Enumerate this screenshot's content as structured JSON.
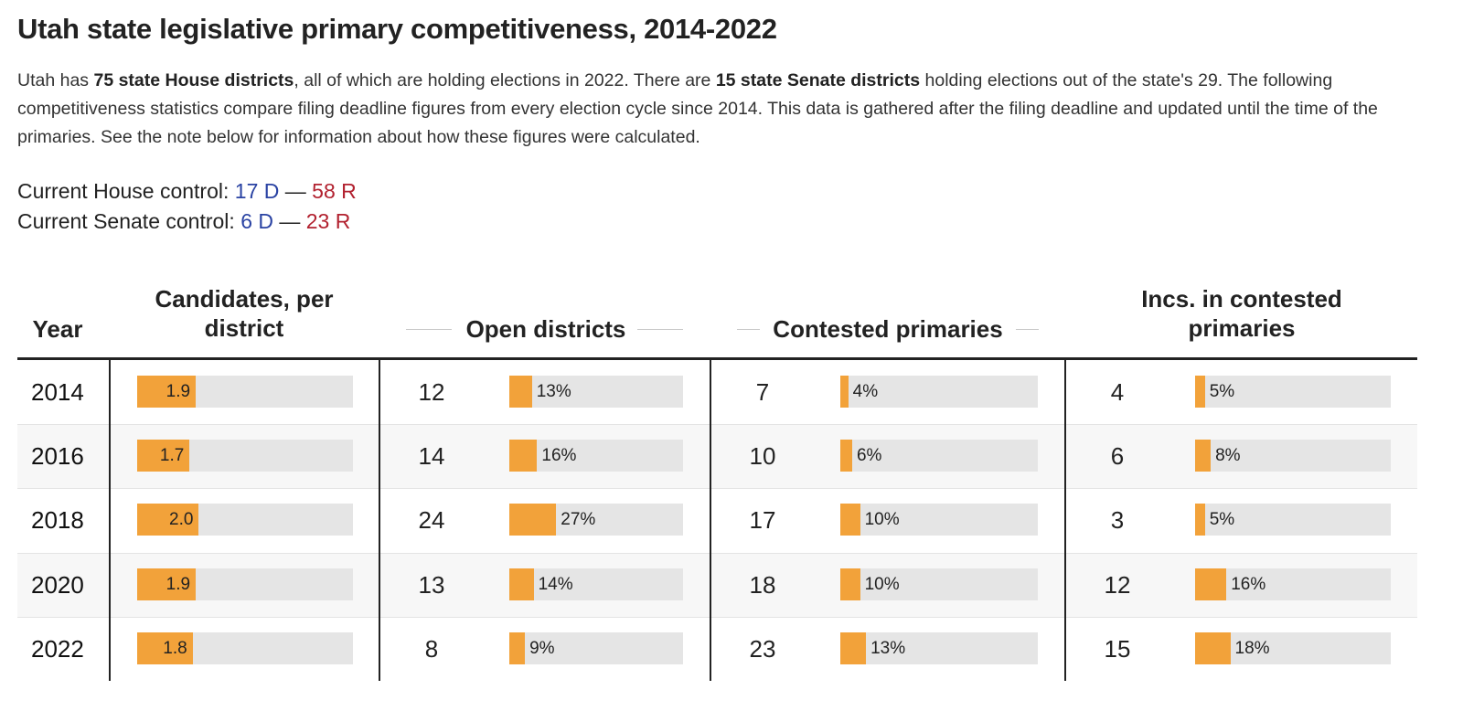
{
  "title": "Utah state legislative primary competitiveness, 2014-2022",
  "intro": {
    "p1": "Utah has ",
    "b1": "75 state House districts",
    "p2": ", all of which are holding elections in 2022. There are ",
    "b2": "15 state Senate districts",
    "p3": " holding elections out of the state's 29. The following competitiveness statistics compare filing deadline figures from every election cycle since 2014. This data is gathered after the filing deadline and updated until the time of the primaries. See the note below for information about how these figures were calculated."
  },
  "control": {
    "house_label": "Current House control: ",
    "house_d": "17 D",
    "house_r": "58 R",
    "senate_label": "Current Senate control: ",
    "senate_d": "6 D",
    "senate_r": "23 R",
    "dash": " — "
  },
  "colors": {
    "bar": "#f2a23a",
    "track": "#e5e5e5",
    "democrat": "#2a43a3",
    "republican": "#b2212f"
  },
  "chart_data": {
    "type": "table",
    "columns": {
      "year": "Year",
      "candidates": "Candidates, per district",
      "open": "Open districts",
      "contested": "Contested primaries",
      "incs": "Incs. in contested primaries"
    },
    "candidates_scale_max": 7,
    "rows": [
      {
        "year": "2014",
        "candidates": 1.9,
        "candidates_label": "1.9",
        "open": "12",
        "open_pct": 13,
        "open_label": "13%",
        "contested": "7",
        "contested_pct": 4,
        "contested_label": "4%",
        "incs": "4",
        "incs_pct": 5,
        "incs_label": "5%"
      },
      {
        "year": "2016",
        "candidates": 1.7,
        "candidates_label": "1.7",
        "open": "14",
        "open_pct": 16,
        "open_label": "16%",
        "contested": "10",
        "contested_pct": 6,
        "contested_label": "6%",
        "incs": "6",
        "incs_pct": 8,
        "incs_label": "8%"
      },
      {
        "year": "2018",
        "candidates": 2.0,
        "candidates_label": "2.0",
        "open": "24",
        "open_pct": 27,
        "open_label": "27%",
        "contested": "17",
        "contested_pct": 10,
        "contested_label": "10%",
        "incs": "3",
        "incs_pct": 5,
        "incs_label": "5%"
      },
      {
        "year": "2020",
        "candidates": 1.9,
        "candidates_label": "1.9",
        "open": "13",
        "open_pct": 14,
        "open_label": "14%",
        "contested": "18",
        "contested_pct": 10,
        "contested_label": "10%",
        "incs": "12",
        "incs_pct": 16,
        "incs_label": "16%"
      },
      {
        "year": "2022",
        "candidates": 1.8,
        "candidates_label": "1.8",
        "open": "8",
        "open_pct": 9,
        "open_label": "9%",
        "contested": "23",
        "contested_pct": 13,
        "contested_label": "13%",
        "incs": "15",
        "incs_pct": 18,
        "incs_label": "18%"
      }
    ]
  }
}
